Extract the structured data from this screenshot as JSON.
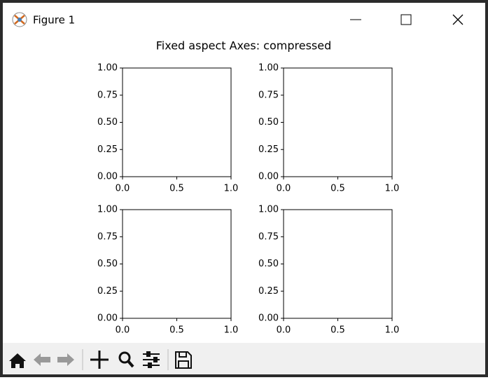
{
  "window": {
    "title": "Figure 1"
  },
  "suptitle": "Fixed aspect Axes: compressed",
  "chart_data": [
    {
      "type": "line",
      "xlim": [
        0,
        1
      ],
      "ylim": [
        0,
        1
      ],
      "xticks": [
        {
          "value": 0,
          "label": "0.0"
        },
        {
          "value": 0.5,
          "label": "0.5"
        },
        {
          "value": 1,
          "label": "1.0"
        }
      ],
      "yticks": [
        {
          "value": 0,
          "label": "0.00"
        },
        {
          "value": 0.25,
          "label": "0.25"
        },
        {
          "value": 0.5,
          "label": "0.50"
        },
        {
          "value": 0.75,
          "label": "0.75"
        },
        {
          "value": 1,
          "label": "1.00"
        }
      ]
    },
    {
      "type": "line",
      "xlim": [
        0,
        1
      ],
      "ylim": [
        0,
        1
      ],
      "xticks": [
        {
          "value": 0,
          "label": "0.0"
        },
        {
          "value": 0.5,
          "label": "0.5"
        },
        {
          "value": 1,
          "label": "1.0"
        }
      ],
      "yticks": [
        {
          "value": 0,
          "label": "0.00"
        },
        {
          "value": 0.25,
          "label": "0.25"
        },
        {
          "value": 0.5,
          "label": "0.50"
        },
        {
          "value": 0.75,
          "label": "0.75"
        },
        {
          "value": 1,
          "label": "1.00"
        }
      ]
    },
    {
      "type": "line",
      "xlim": [
        0,
        1
      ],
      "ylim": [
        0,
        1
      ],
      "xticks": [
        {
          "value": 0,
          "label": "0.0"
        },
        {
          "value": 0.5,
          "label": "0.5"
        },
        {
          "value": 1,
          "label": "1.0"
        }
      ],
      "yticks": [
        {
          "value": 0,
          "label": "0.00"
        },
        {
          "value": 0.25,
          "label": "0.25"
        },
        {
          "value": 0.5,
          "label": "0.50"
        },
        {
          "value": 0.75,
          "label": "0.75"
        },
        {
          "value": 1,
          "label": "1.00"
        }
      ]
    },
    {
      "type": "line",
      "xlim": [
        0,
        1
      ],
      "ylim": [
        0,
        1
      ],
      "xticks": [
        {
          "value": 0,
          "label": "0.0"
        },
        {
          "value": 0.5,
          "label": "0.5"
        },
        {
          "value": 1,
          "label": "1.0"
        }
      ],
      "yticks": [
        {
          "value": 0,
          "label": "0.00"
        },
        {
          "value": 0.25,
          "label": "0.25"
        },
        {
          "value": 0.5,
          "label": "0.50"
        },
        {
          "value": 0.75,
          "label": "0.75"
        },
        {
          "value": 1,
          "label": "1.00"
        }
      ]
    }
  ]
}
